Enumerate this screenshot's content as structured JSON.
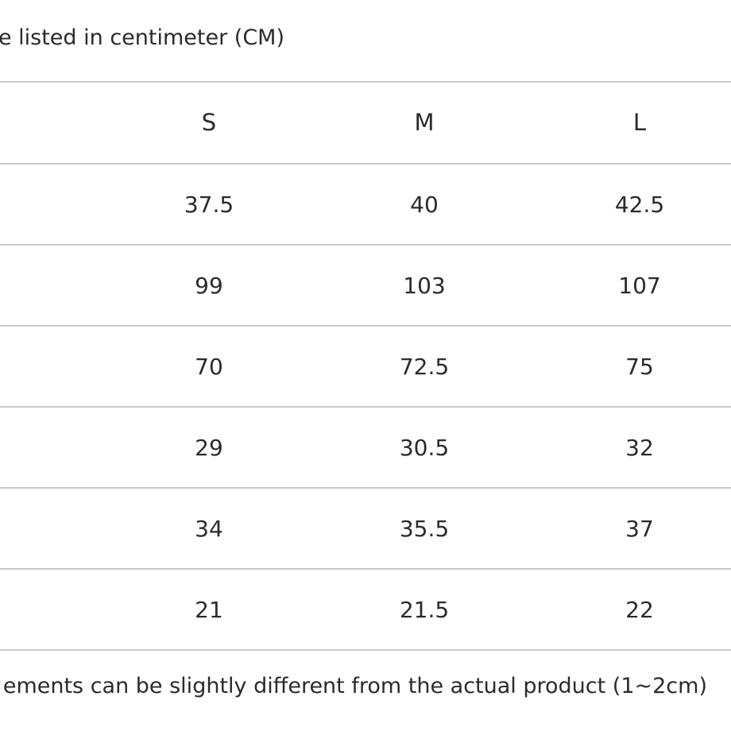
{
  "notes": {
    "top": "e listed in centimeter (CM)",
    "bottom": "ements can be slightly different from the actual product (1~2cm)"
  },
  "table": {
    "columns": [
      "S",
      "M",
      "L"
    ],
    "rows": [
      [
        "37.5",
        "40",
        "42.5"
      ],
      [
        "99",
        "103",
        "107"
      ],
      [
        "70",
        "72.5",
        "75"
      ],
      [
        "29",
        "30.5",
        "32"
      ],
      [
        "34",
        "35.5",
        "37"
      ],
      [
        "21",
        "21.5",
        "22"
      ]
    ]
  }
}
